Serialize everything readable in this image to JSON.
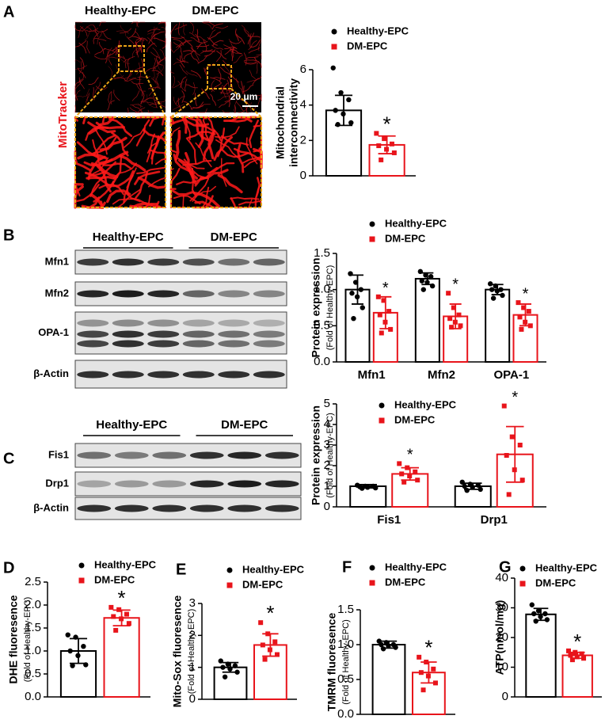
{
  "panel_labels": [
    "A",
    "B",
    "C",
    "D",
    "E",
    "F",
    "G"
  ],
  "figure_a": {
    "column_labels": [
      "Healthy-EPC",
      "DM-EPC"
    ],
    "stain_label": "MitoTracker",
    "scale_label": "20 μm"
  },
  "blot_b": {
    "groups": [
      "Healthy-EPC",
      "DM-EPC"
    ],
    "rows": [
      "Mfn1",
      "Mfn2",
      "OPA-1",
      "β-Actin"
    ]
  },
  "blot_c": {
    "groups": [
      "Healthy-EPC",
      "DM-EPC"
    ],
    "rows": [
      "Fis1",
      "Drp1",
      "β-Actin"
    ]
  },
  "chart_data": [
    {
      "type": "bar",
      "ylabel": [
        "Mitochondrial",
        "interconnectivity"
      ],
      "categories": [
        null
      ],
      "ylim": [
        0,
        6
      ],
      "yticks": [
        0,
        2,
        4,
        6
      ],
      "series": [
        {
          "name": "Healthy-EPC",
          "color": "#000000",
          "values": [
            3.7
          ],
          "errors": [
            0.85
          ],
          "points": [
            [
              6.1,
              4.7,
              4.3,
              3.7,
              3.5,
              3.0,
              2.9
            ]
          ]
        },
        {
          "name": "DM-EPC",
          "color": "#e8141b",
          "values": [
            1.75
          ],
          "errors": [
            0.5
          ],
          "points": [
            [
              2.4,
              2.1,
              1.8,
              1.7,
              1.5,
              1.3,
              0.9
            ]
          ],
          "sig": [
            "*"
          ]
        }
      ]
    },
    {
      "type": "bar",
      "ylabel": [
        "Protein expression",
        "(Fold of Healthy-EPC)"
      ],
      "categories": [
        "Mfn1",
        "Mfn2",
        "OPA-1"
      ],
      "ylim": [
        0,
        1.5
      ],
      "yticks": [
        {
          "value": 0,
          "label": "0.0"
        },
        0.5,
        {
          "value": 1,
          "label": "1.0"
        },
        1.5
      ],
      "series": [
        {
          "name": "Healthy-EPC",
          "color": "#000000",
          "values": [
            1.0,
            1.15,
            1.0
          ],
          "errors": [
            0.2,
            0.08,
            0.07
          ],
          "points": [
            [
              1.22,
              1.1,
              1.0,
              0.95,
              0.9,
              0.75,
              0.6
            ],
            [
              1.25,
              1.2,
              1.18,
              1.12,
              1.1,
              1.05,
              1.0
            ],
            [
              1.08,
              1.05,
              1.0,
              1.0,
              0.98,
              0.92,
              0.88
            ]
          ]
        },
        {
          "name": "DM-EPC",
          "color": "#e8141b",
          "values": [
            0.68,
            0.63,
            0.65
          ],
          "errors": [
            0.22,
            0.17,
            0.15
          ],
          "points": [
            [
              0.9,
              0.85,
              0.7,
              0.65,
              0.55,
              0.45,
              0.4
            ],
            [
              0.95,
              0.75,
              0.65,
              0.6,
              0.55,
              0.5,
              0.48
            ],
            [
              0.82,
              0.75,
              0.7,
              0.62,
              0.55,
              0.5,
              0.45
            ]
          ],
          "sig": [
            "*",
            "*",
            "*"
          ]
        }
      ]
    },
    {
      "type": "bar",
      "ylabel": [
        "Protein expression",
        "(Fold of Healthy-EPC)"
      ],
      "categories": [
        "Fis1",
        "Drp1"
      ],
      "ylim": [
        0,
        5
      ],
      "yticks": [
        0,
        1,
        2,
        3,
        4,
        5
      ],
      "series": [
        {
          "name": "Healthy-EPC",
          "color": "#000000",
          "values": [
            1.0,
            1.0
          ],
          "errors": [
            0.08,
            0.15
          ],
          "points": [
            [
              1.05,
              1.0,
              1.0,
              0.98,
              0.95,
              0.92,
              0.9
            ],
            [
              1.2,
              1.1,
              1.05,
              1.0,
              0.95,
              0.85,
              0.8
            ]
          ]
        },
        {
          "name": "DM-EPC",
          "color": "#e8141b",
          "values": [
            1.6,
            2.55
          ],
          "errors": [
            0.3,
            1.35
          ],
          "points": [
            [
              2.1,
              1.9,
              1.7,
              1.6,
              1.5,
              1.3,
              1.2
            ],
            [
              4.9,
              3.4,
              3.0,
              2.5,
              1.8,
              1.3,
              0.6
            ]
          ],
          "sig": [
            "*",
            "*"
          ]
        }
      ]
    },
    {
      "type": "bar",
      "ylabel": [
        "DHE fluoresence",
        "(Fold of Healthy-EPC)"
      ],
      "categories": [
        null
      ],
      "ylim": [
        0,
        2.5
      ],
      "yticks": [
        {
          "value": 0,
          "label": "0.0"
        },
        0.5,
        {
          "value": 1,
          "label": "1.0"
        },
        1.5,
        {
          "value": 2,
          "label": "2.0"
        },
        2.5
      ],
      "series": [
        {
          "name": "Healthy-EPC",
          "color": "#000000",
          "values": [
            1.0
          ],
          "errors": [
            0.27
          ],
          "points": [
            [
              1.35,
              1.3,
              1.1,
              1.0,
              0.9,
              0.7,
              0.68
            ]
          ]
        },
        {
          "name": "DM-EPC",
          "color": "#e8141b",
          "values": [
            1.72
          ],
          "errors": [
            0.17
          ],
          "points": [
            [
              1.95,
              1.9,
              1.8,
              1.75,
              1.7,
              1.6,
              1.45
            ]
          ],
          "sig": [
            "*"
          ]
        }
      ]
    },
    {
      "type": "bar",
      "ylabel": [
        "Mito-Sox fluoresence",
        "(Fold of Healthy-EPC)"
      ],
      "categories": [
        null
      ],
      "ylim": [
        0,
        3
      ],
      "yticks": [
        0,
        1,
        2,
        3
      ],
      "series": [
        {
          "name": "Healthy-EPC",
          "color": "#000000",
          "values": [
            1.0
          ],
          "errors": [
            0.15
          ],
          "points": [
            [
              1.2,
              1.1,
              1.05,
              1.0,
              0.95,
              0.85,
              0.7
            ]
          ]
        },
        {
          "name": "DM-EPC",
          "color": "#e8141b",
          "values": [
            1.7
          ],
          "errors": [
            0.35
          ],
          "points": [
            [
              2.4,
              2.05,
              1.8,
              1.7,
              1.55,
              1.4,
              1.25
            ]
          ],
          "sig": [
            "*"
          ]
        }
      ]
    },
    {
      "type": "bar",
      "ylabel": [
        "TMRM fluoresence",
        "(Fold of Healthy-EPC)"
      ],
      "categories": [
        null
      ],
      "ylim": [
        0,
        1.5
      ],
      "yticks": [
        {
          "value": 0,
          "label": "0.0"
        },
        0.5,
        {
          "value": 1,
          "label": "1.0"
        },
        1.5
      ],
      "series": [
        {
          "name": "Healthy-EPC",
          "color": "#000000",
          "values": [
            1.0
          ],
          "errors": [
            0.05
          ],
          "points": [
            [
              1.05,
              1.03,
              1.0,
              1.0,
              0.98,
              0.96,
              0.94
            ]
          ]
        },
        {
          "name": "DM-EPC",
          "color": "#e8141b",
          "values": [
            0.6
          ],
          "errors": [
            0.15
          ],
          "points": [
            [
              0.82,
              0.75,
              0.65,
              0.6,
              0.55,
              0.45,
              0.35
            ]
          ],
          "sig": [
            "*"
          ]
        }
      ]
    },
    {
      "type": "bar",
      "ylabel": [
        "ATP(nmol/mg)"
      ],
      "categories": [
        null
      ],
      "ylim": [
        0,
        40
      ],
      "yticks": [
        0,
        10,
        20,
        30,
        40
      ],
      "series": [
        {
          "name": "Healthy-EPC",
          "color": "#000000",
          "values": [
            27.8
          ],
          "errors": [
            2
          ],
          "points": [
            [
              31,
              29,
              28,
              28,
              27,
              26,
              25.5
            ]
          ]
        },
        {
          "name": "DM-EPC",
          "color": "#e8141b",
          "values": [
            14
          ],
          "errors": [
            1
          ],
          "points": [
            [
              15.5,
              15,
              14.5,
              14,
              13.5,
              13,
              12.5
            ]
          ],
          "sig": [
            "*"
          ]
        }
      ]
    }
  ]
}
